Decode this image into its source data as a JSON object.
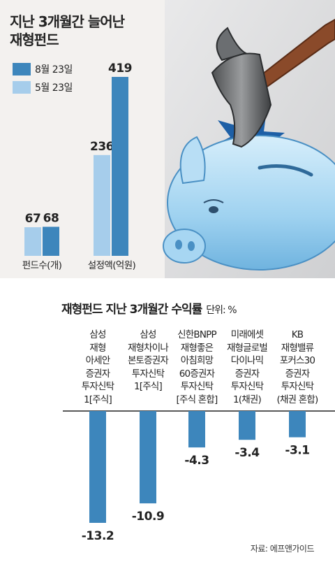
{
  "top_chart": {
    "title_line1": "지난 3개월간 늘어난",
    "title_line2": "재형펀드",
    "legend": [
      {
        "label": "8월 23일",
        "color": "#3d86bc"
      },
      {
        "label": "5월 23일",
        "color": "#a6cdeb"
      }
    ],
    "chart_data": {
      "type": "bar",
      "categories": [
        "펀드수(개)",
        "설정액(억원)"
      ],
      "series": [
        {
          "name": "5월 23일",
          "values": [
            67,
            236
          ],
          "color": "#a6cdeb"
        },
        {
          "name": "8월 23일",
          "values": [
            68,
            419
          ],
          "color": "#3d86bc"
        }
      ]
    }
  },
  "bottom_chart": {
    "title": "재형펀드 지난 3개월간 수익률",
    "unit": "단위: %",
    "chart_data": {
      "type": "bar",
      "categories": [
        [
          "삼성",
          "재형",
          "아세안",
          "증권자",
          "투자신탁",
          "1[주식]"
        ],
        [
          "삼성",
          "재형차이나",
          "본토증권자",
          "투자신탁",
          "1[주식]"
        ],
        [
          "신한BNPP",
          "재형좋은",
          "아침희망",
          "60증권자",
          "투자신탁",
          "[주식 혼합]"
        ],
        [
          "미래에셋",
          "재형글로벌",
          "다이나믹",
          "증권자",
          "투자신탁",
          "1(채권)"
        ],
        [
          "KB",
          "재형밸류",
          "포커스30",
          "증권자",
          "투자신탁",
          "(채권 혼합)"
        ]
      ],
      "values": [
        -13.2,
        -10.9,
        -4.3,
        -3.4,
        -3.1
      ],
      "value_labels": [
        "-13.2",
        "-10.9",
        "-4.3",
        "-3.4",
        "-3.1"
      ],
      "color": "#3d86bc"
    },
    "source": "자료: 에프앤가이드"
  },
  "illustration": {
    "subject": "piggy-bank-and-hammer-icon"
  }
}
